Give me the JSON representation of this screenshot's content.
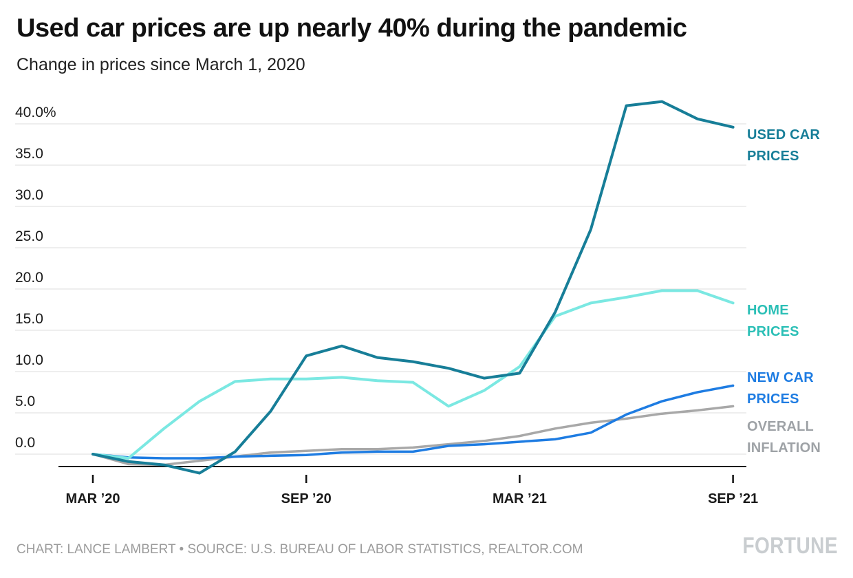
{
  "header": {
    "title": "Used car prices are up nearly 40% during the pandemic",
    "subtitle": "Change in prices since March 1, 2020"
  },
  "footer": {
    "credit": "CHART: LANCE LAMBERT • SOURCE: U.S. BUREAU OF LABOR STATISTICS, REALTOR.COM",
    "brand": "FORTUNE"
  },
  "colors": {
    "grid": "#dcdcdc",
    "axis": "#111111",
    "text": "#1a1a1a",
    "credit_text": "#9b9b9b",
    "brand_text": "#c9cdd0"
  },
  "chart_data": {
    "type": "line",
    "title": "Used car prices are up nearly 40% during the pandemic",
    "subtitle": "Change in prices since March 1, 2020",
    "unit": "percent change since March 1, 2020",
    "gridlines": true,
    "legend_position": "right-edge-labels",
    "xlabel": "",
    "ylabel": "",
    "ylim": [
      -2.5,
      43
    ],
    "baseline": -1.5,
    "y_ticks": [
      {
        "label": "40.0%",
        "value": 40
      },
      {
        "label": "35.0",
        "value": 35
      },
      {
        "label": "30.0",
        "value": 30
      },
      {
        "label": "25.0",
        "value": 25
      },
      {
        "label": "20.0",
        "value": 20
      },
      {
        "label": "15.0",
        "value": 15
      },
      {
        "label": "10.0",
        "value": 10
      },
      {
        "label": "5.0",
        "value": 5
      },
      {
        "label": "0.0",
        "value": 0
      }
    ],
    "x_tick_labels": [
      "MAR ’20",
      "SEP ’20",
      "MAR ’21",
      "SEP ’21"
    ],
    "x_tick_months": [
      0,
      6,
      12,
      18
    ],
    "months": [
      "Mar 2020",
      "Apr 2020",
      "May 2020",
      "Jun 2020",
      "Jul 2020",
      "Aug 2020",
      "Sep 2020",
      "Oct 2020",
      "Nov 2020",
      "Dec 2020",
      "Jan 2021",
      "Feb 2021",
      "Mar 2021",
      "Apr 2021",
      "May 2021",
      "Jun 2021",
      "Jul 2021",
      "Aug 2021",
      "Sep 2021"
    ],
    "series": [
      {
        "id": "used-car-prices",
        "name": "USED CAR PRICES",
        "label_line1": "USED CAR",
        "label_line2": "PRICES",
        "color": "#177e98",
        "label_color": "#177e98",
        "width": 4,
        "values": [
          0,
          -0.9,
          -1.3,
          -2.3,
          0.3,
          5.2,
          11.9,
          13.1,
          11.7,
          11.2,
          10.4,
          9.2,
          9.8,
          17.2,
          27.2,
          42.2,
          42.7,
          40.6,
          39.6
        ]
      },
      {
        "id": "home-prices",
        "name": "HOME PRICES",
        "label_line1": "HOME",
        "label_line2": "PRICES",
        "color": "#7be8e2",
        "label_color": "#2bbfb6",
        "width": 4,
        "values": [
          0,
          -0.5,
          3.1,
          6.4,
          8.8,
          9.1,
          9.1,
          9.3,
          8.9,
          8.7,
          5.8,
          7.7,
          10.6,
          16.7,
          18.3,
          19.0,
          19.8,
          19.8,
          18.3
        ]
      },
      {
        "id": "new-car-prices",
        "name": "NEW CAR PRICES",
        "label_line1": "NEW CAR",
        "label_line2": "PRICES",
        "color": "#1e7ce2",
        "label_color": "#1e7ce2",
        "width": 3.5,
        "values": [
          0,
          -0.4,
          -0.5,
          -0.5,
          -0.3,
          -0.2,
          -0.1,
          0.2,
          0.3,
          0.3,
          1.0,
          1.2,
          1.5,
          1.8,
          2.6,
          4.8,
          6.4,
          7.5,
          8.3
        ]
      },
      {
        "id": "overall-inflation",
        "name": "OVERALL INFLATION",
        "label_line1": "OVERALL",
        "label_line2": "INFLATION",
        "color": "#a8a8a8",
        "label_color": "#9ea2a6",
        "width": 3.5,
        "values": [
          0,
          -1.2,
          -1.3,
          -0.8,
          -0.3,
          0.2,
          0.4,
          0.6,
          0.6,
          0.8,
          1.2,
          1.6,
          2.2,
          3.1,
          3.8,
          4.3,
          4.9,
          5.3,
          5.8
        ]
      }
    ]
  }
}
